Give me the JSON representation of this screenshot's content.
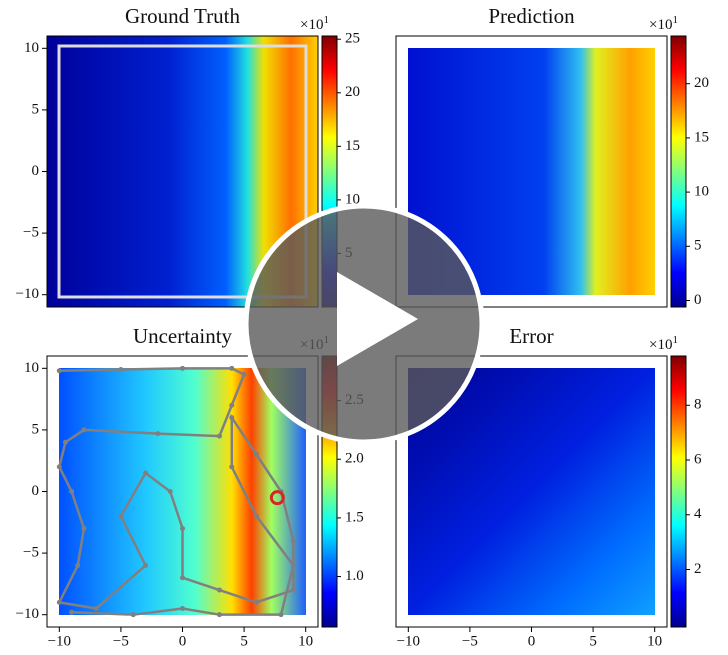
{
  "chart_data": [
    {
      "type": "heatmap",
      "title": "Ground Truth",
      "xlim": [
        -11,
        11
      ],
      "ylim": [
        -11,
        11
      ],
      "yticks": [
        {
          "value": -10,
          "label": "−10"
        },
        {
          "value": -5,
          "label": "−5"
        },
        0,
        5,
        10
      ],
      "colorbar": {
        "colormap": "jet",
        "lim": [
          0,
          25.3
        ],
        "ticks": [
          5,
          10,
          15,
          20,
          25
        ],
        "offset_base": "×10",
        "offset_exp": "1"
      }
    },
    {
      "type": "heatmap",
      "title": "Prediction",
      "xlim": [
        -11,
        11
      ],
      "ylim": [
        -11,
        11
      ],
      "colorbar": {
        "colormap": "jet",
        "lim": [
          -0.6,
          24.4
        ],
        "ticks": [
          0,
          5,
          10,
          15,
          20
        ],
        "offset_base": "×10",
        "offset_exp": "1"
      }
    },
    {
      "type": "heatmap",
      "title": "Uncertainty",
      "xlim": [
        -11,
        11
      ],
      "ylim": [
        -11,
        11
      ],
      "xticks": [
        {
          "value": -10,
          "label": "−10"
        },
        {
          "value": -5,
          "label": "−5"
        },
        0,
        5,
        10
      ],
      "yticks": [
        {
          "value": -10,
          "label": "−10"
        },
        {
          "value": -5,
          "label": "−5"
        },
        0,
        5,
        10
      ],
      "colorbar": {
        "colormap": "jet",
        "lim": [
          0.57,
          2.88
        ],
        "ticks": [
          {
            "value": 1,
            "label": "1.0"
          },
          1.5,
          {
            "value": 2,
            "label": "2.0"
          },
          2.5
        ],
        "offset_base": "×10",
        "offset_exp": "1"
      },
      "trajectory": {
        "color": "#808080",
        "x": [
          -10,
          -5,
          0,
          4,
          5,
          4,
          3,
          -2,
          -8,
          -9.5,
          -10,
          -9,
          -8,
          -8.5,
          -10,
          -7,
          -3,
          -5,
          -3,
          -1,
          0,
          0,
          3,
          6,
          9,
          9,
          8,
          6,
          4,
          4,
          6,
          9,
          8,
          3,
          0,
          -4,
          -9
        ],
        "y": [
          9.8,
          9.9,
          10,
          10,
          9.5,
          7,
          4.5,
          4.7,
          5,
          4,
          2,
          0,
          -3,
          -6,
          -9,
          -9.5,
          -6,
          -2,
          1.5,
          0,
          -3,
          -7,
          -8,
          -9,
          -8,
          -4,
          0,
          3,
          6,
          2,
          -2,
          -6,
          -10,
          -10,
          -9.5,
          -10,
          -9.8
        ]
      },
      "marker": {
        "x": 7.7,
        "y": -0.5,
        "color": "#d62728"
      }
    },
    {
      "type": "heatmap",
      "title": "Error",
      "xlim": [
        -11,
        11
      ],
      "ylim": [
        -11,
        11
      ],
      "xticks": [
        {
          "value": -10,
          "label": "−10"
        },
        {
          "value": -5,
          "label": "−5"
        },
        0,
        5,
        10
      ],
      "colorbar": {
        "colormap": "jet",
        "lim": [
          -0.1,
          9.8
        ],
        "ticks": [
          2,
          4,
          6,
          8
        ],
        "offset_base": "×10",
        "offset_exp": "1"
      }
    }
  ]
}
